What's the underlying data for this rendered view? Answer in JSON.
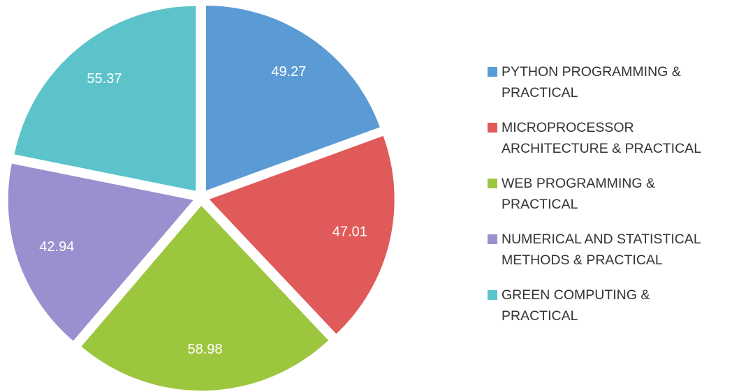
{
  "chart_data": {
    "type": "pie",
    "categories": [
      "PYTHON PROGRAMMING & PRACTICAL",
      "MICROPROCESSOR ARCHITECTURE & PRACTICAL",
      "WEB PROGRAMMING & PRACTICAL",
      "NUMERICAL AND STATISTICAL METHODS & PRACTICAL",
      "GREEN COMPUTING & PRACTICAL"
    ],
    "values": [
      49.27,
      47.01,
      58.98,
      42.94,
      55.37
    ],
    "colors": [
      "#5b9bd5",
      "#e05a5a",
      "#9dc63f",
      "#9a8fcf",
      "#5cc3cb"
    ],
    "legend": "right"
  }
}
